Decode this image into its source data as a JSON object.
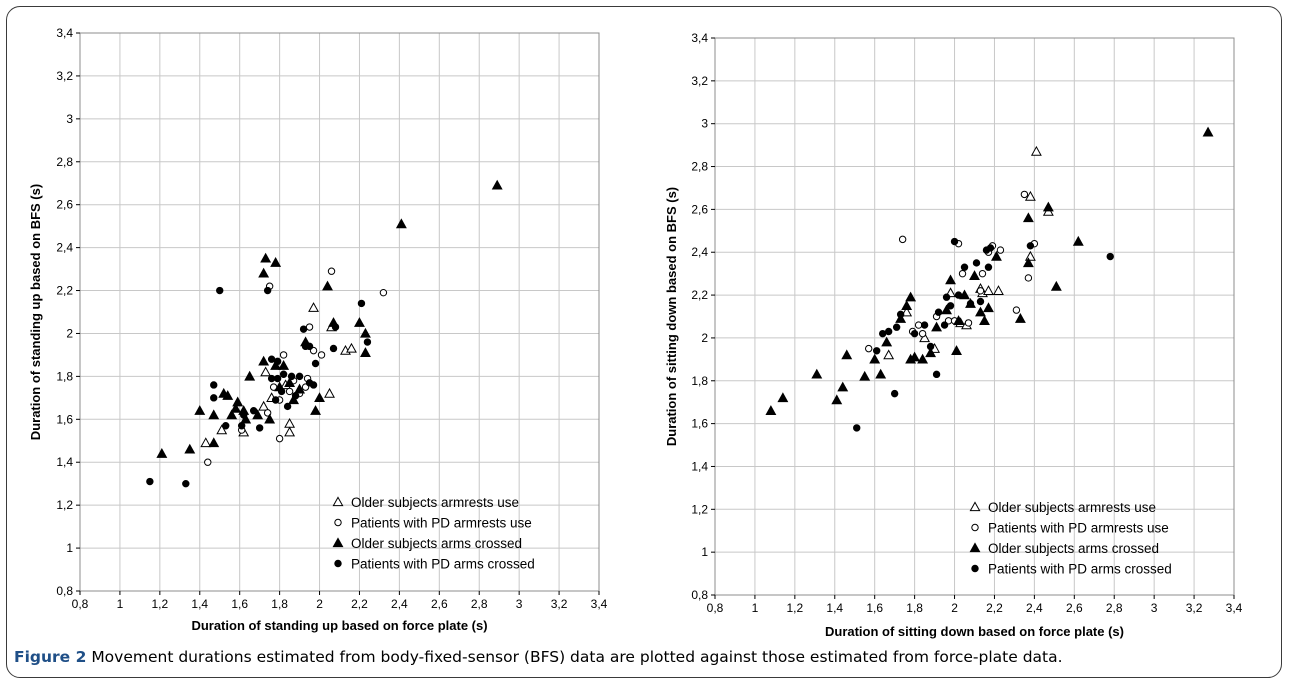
{
  "caption": {
    "label": "Figure 2",
    "text": "Movement durations estimated from body-fixed-sensor (BFS) data are plotted against those estimated from force-plate data."
  },
  "colors": {
    "marker": "#000000",
    "grid": "#c8c8c8",
    "caption_label": "#1f4f87"
  },
  "chart_data": [
    {
      "type": "scatter",
      "xlabel": "Duration of standing up based on force plate (s)",
      "ylabel": "Duration of standing up based on BFS (s)",
      "xlim": [
        0.8,
        3.4
      ],
      "ylim": [
        0.8,
        3.4
      ],
      "xticks": [
        "0,8",
        "1",
        "1,2",
        "1,4",
        "1,6",
        "1,8",
        "2",
        "2,2",
        "2,4",
        "2,6",
        "2,8",
        "3",
        "3,2",
        "3,4"
      ],
      "yticks": [
        "0,8",
        "1",
        "1,2",
        "1,4",
        "1,6",
        "1,8",
        "2",
        "2,2",
        "2,4",
        "2,6",
        "2,8",
        "3",
        "3,2",
        "3,4"
      ],
      "grid": true,
      "legend_position": "bottom-right",
      "series": [
        {
          "name": "Older subjects armrests use",
          "marker": "open-triangle",
          "points": [
            [
              1.43,
              1.49
            ],
            [
              1.51,
              1.55
            ],
            [
              1.62,
              1.54
            ],
            [
              1.72,
              1.66
            ],
            [
              1.76,
              1.7
            ],
            [
              1.85,
              1.58
            ],
            [
              1.85,
              1.54
            ],
            [
              1.97,
              2.12
            ],
            [
              2.05,
              1.72
            ],
            [
              2.06,
              2.03
            ],
            [
              2.13,
              1.92
            ],
            [
              2.16,
              1.93
            ],
            [
              1.73,
              1.82
            ],
            [
              1.83,
              1.76
            ]
          ]
        },
        {
          "name": "Patients with PD armrests use",
          "marker": "open-circle",
          "points": [
            [
              1.44,
              1.4
            ],
            [
              1.61,
              1.55
            ],
            [
              1.75,
              2.22
            ],
            [
              1.74,
              1.63
            ],
            [
              1.8,
              1.51
            ],
            [
              1.8,
              1.69
            ],
            [
              1.82,
              1.9
            ],
            [
              1.87,
              1.78
            ],
            [
              1.93,
              1.75
            ],
            [
              1.94,
              1.79
            ],
            [
              1.95,
              2.03
            ],
            [
              1.97,
              1.92
            ],
            [
              2.01,
              1.9
            ],
            [
              2.06,
              2.29
            ],
            [
              2.32,
              2.19
            ],
            [
              1.77,
              1.75
            ],
            [
              1.9,
              1.72
            ],
            [
              1.85,
              1.73
            ]
          ]
        },
        {
          "name": "Older subjects arms crossed",
          "marker": "filled-triangle",
          "points": [
            [
              1.21,
              1.44
            ],
            [
              1.35,
              1.46
            ],
            [
              1.4,
              1.64
            ],
            [
              1.47,
              1.49
            ],
            [
              1.47,
              1.62
            ],
            [
              1.52,
              1.72
            ],
            [
              1.54,
              1.71
            ],
            [
              1.56,
              1.62
            ],
            [
              1.58,
              1.65
            ],
            [
              1.59,
              1.68
            ],
            [
              1.62,
              1.64
            ],
            [
              1.63,
              1.6
            ],
            [
              1.65,
              1.8
            ],
            [
              1.69,
              1.62
            ],
            [
              1.72,
              2.28
            ],
            [
              1.73,
              2.35
            ],
            [
              1.78,
              2.33
            ],
            [
              1.72,
              1.87
            ],
            [
              1.78,
              1.85
            ],
            [
              1.8,
              1.75
            ],
            [
              1.85,
              1.77
            ],
            [
              1.87,
              1.69
            ],
            [
              1.9,
              1.74
            ],
            [
              1.93,
              1.96
            ],
            [
              1.98,
              1.64
            ],
            [
              2.04,
              2.22
            ],
            [
              2.07,
              2.05
            ],
            [
              2.2,
              2.05
            ],
            [
              2.23,
              2.0
            ],
            [
              2.23,
              1.91
            ],
            [
              2.41,
              2.51
            ],
            [
              2.89,
              2.69
            ],
            [
              1.75,
              1.6
            ],
            [
              1.82,
              1.85
            ],
            [
              2.0,
              1.7
            ]
          ]
        },
        {
          "name": "Patients with PD arms crossed",
          "marker": "filled-circle",
          "points": [
            [
              1.15,
              1.31
            ],
            [
              1.33,
              1.3
            ],
            [
              1.47,
              1.76
            ],
            [
              1.47,
              1.7
            ],
            [
              1.5,
              2.2
            ],
            [
              1.53,
              1.57
            ],
            [
              1.61,
              1.57
            ],
            [
              1.62,
              1.62
            ],
            [
              1.67,
              1.64
            ],
            [
              1.7,
              1.56
            ],
            [
              1.74,
              2.2
            ],
            [
              1.76,
              1.88
            ],
            [
              1.76,
              1.79
            ],
            [
              1.79,
              1.87
            ],
            [
              1.79,
              1.79
            ],
            [
              1.81,
              1.73
            ],
            [
              1.82,
              1.81
            ],
            [
              1.84,
              1.66
            ],
            [
              1.86,
              1.8
            ],
            [
              1.88,
              1.71
            ],
            [
              1.92,
              2.02
            ],
            [
              1.93,
              1.94
            ],
            [
              1.95,
              1.94
            ],
            [
              1.95,
              1.77
            ],
            [
              1.97,
              1.76
            ],
            [
              2.07,
              1.93
            ],
            [
              2.08,
              2.03
            ],
            [
              2.21,
              2.14
            ],
            [
              2.24,
              1.96
            ],
            [
              1.78,
              1.69
            ],
            [
              1.9,
              1.8
            ],
            [
              1.98,
              1.86
            ]
          ]
        }
      ]
    },
    {
      "type": "scatter",
      "xlabel": "Duration of sitting down based on force plate (s)",
      "ylabel": "Duration of sitting down based on BFS (s)",
      "xlim": [
        0.8,
        3.4
      ],
      "ylim": [
        0.8,
        3.4
      ],
      "xticks": [
        "0,8",
        "1",
        "1,2",
        "1,4",
        "1,6",
        "1,8",
        "2",
        "2,2",
        "2,4",
        "2,6",
        "2,8",
        "3",
        "3,2",
        "3,4"
      ],
      "yticks": [
        "0,8",
        "1",
        "1,2",
        "1,4",
        "1,6",
        "1,8",
        "2",
        "2,2",
        "2,4",
        "2,6",
        "2,8",
        "3",
        "3,2",
        "3,4"
      ],
      "grid": true,
      "legend_position": "bottom-right",
      "series": [
        {
          "name": "Older subjects armrests use",
          "marker": "open-triangle",
          "points": [
            [
              1.67,
              1.92
            ],
            [
              1.76,
              2.12
            ],
            [
              1.85,
              2.0
            ],
            [
              1.9,
              1.95
            ],
            [
              1.98,
              2.21
            ],
            [
              2.03,
              2.07
            ],
            [
              2.06,
              2.06
            ],
            [
              2.13,
              2.23
            ],
            [
              2.14,
              2.21
            ],
            [
              2.17,
              2.22
            ],
            [
              2.22,
              2.22
            ],
            [
              2.38,
              2.66
            ],
            [
              2.38,
              2.38
            ],
            [
              2.41,
              2.87
            ],
            [
              2.47,
              2.59
            ]
          ]
        },
        {
          "name": "Patients with PD armrests use",
          "marker": "open-circle",
          "points": [
            [
              1.57,
              1.95
            ],
            [
              1.74,
              2.46
            ],
            [
              1.79,
              2.03
            ],
            [
              1.82,
              2.06
            ],
            [
              1.84,
              2.02
            ],
            [
              1.91,
              2.1
            ],
            [
              1.97,
              2.08
            ],
            [
              2.0,
              2.08
            ],
            [
              2.02,
              2.44
            ],
            [
              2.04,
              2.3
            ],
            [
              2.07,
              2.07
            ],
            [
              2.13,
              2.22
            ],
            [
              2.14,
              2.3
            ],
            [
              2.17,
              2.4
            ],
            [
              2.19,
              2.43
            ],
            [
              2.23,
              2.41
            ],
            [
              2.31,
              2.13
            ],
            [
              2.35,
              2.67
            ],
            [
              2.37,
              2.28
            ],
            [
              2.4,
              2.44
            ]
          ]
        },
        {
          "name": "Older subjects arms crossed",
          "marker": "filled-triangle",
          "points": [
            [
              1.08,
              1.66
            ],
            [
              1.14,
              1.72
            ],
            [
              1.31,
              1.83
            ],
            [
              1.41,
              1.71
            ],
            [
              1.44,
              1.77
            ],
            [
              1.46,
              1.92
            ],
            [
              1.55,
              1.82
            ],
            [
              1.6,
              1.9
            ],
            [
              1.63,
              1.83
            ],
            [
              1.66,
              1.98
            ],
            [
              1.73,
              2.09
            ],
            [
              1.76,
              2.15
            ],
            [
              1.78,
              2.19
            ],
            [
              1.78,
              1.9
            ],
            [
              1.8,
              1.91
            ],
            [
              1.84,
              1.9
            ],
            [
              1.88,
              1.93
            ],
            [
              1.91,
              2.05
            ],
            [
              1.98,
              2.27
            ],
            [
              2.01,
              1.94
            ],
            [
              2.02,
              2.08
            ],
            [
              2.05,
              2.2
            ],
            [
              2.1,
              2.29
            ],
            [
              2.13,
              2.12
            ],
            [
              2.15,
              2.08
            ],
            [
              2.17,
              2.14
            ],
            [
              2.21,
              2.38
            ],
            [
              2.37,
              2.56
            ],
            [
              2.37,
              2.35
            ],
            [
              2.47,
              2.61
            ],
            [
              2.51,
              2.24
            ],
            [
              2.62,
              2.45
            ],
            [
              3.27,
              2.96
            ],
            [
              2.33,
              2.09
            ],
            [
              2.08,
              2.16
            ],
            [
              1.96,
              2.13
            ]
          ]
        },
        {
          "name": "Patients with PD arms crossed",
          "marker": "filled-circle",
          "points": [
            [
              1.51,
              1.58
            ],
            [
              1.61,
              1.94
            ],
            [
              1.64,
              2.02
            ],
            [
              1.67,
              2.03
            ],
            [
              1.7,
              1.74
            ],
            [
              1.71,
              2.05
            ],
            [
              1.73,
              2.11
            ],
            [
              1.8,
              2.02
            ],
            [
              1.85,
              2.06
            ],
            [
              1.91,
              1.83
            ],
            [
              1.92,
              2.12
            ],
            [
              1.96,
              2.19
            ],
            [
              1.98,
              2.15
            ],
            [
              2.0,
              2.45
            ],
            [
              2.05,
              2.33
            ],
            [
              2.08,
              2.16
            ],
            [
              2.11,
              2.35
            ],
            [
              2.13,
              2.17
            ],
            [
              2.16,
              2.41
            ],
            [
              2.17,
              2.33
            ],
            [
              2.18,
              2.42
            ],
            [
              2.38,
              2.43
            ],
            [
              2.78,
              2.38
            ],
            [
              1.88,
              1.96
            ],
            [
              2.02,
              2.2
            ],
            [
              1.95,
              2.06
            ]
          ]
        }
      ]
    }
  ]
}
